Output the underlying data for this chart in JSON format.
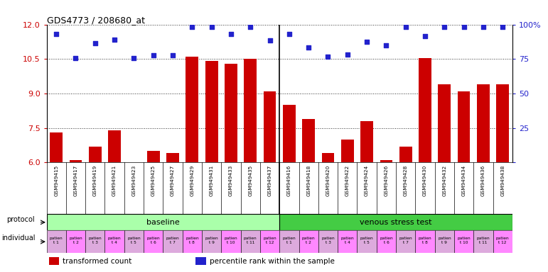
{
  "title": "GDS4773 / 208680_at",
  "gsm_labels": [
    "GSM949415",
    "GSM949417",
    "GSM949419",
    "GSM949421",
    "GSM949423",
    "GSM949425",
    "GSM949427",
    "GSM949429",
    "GSM949431",
    "GSM949433",
    "GSM949435",
    "GSM949437",
    "GSM949416",
    "GSM949418",
    "GSM949420",
    "GSM949422",
    "GSM949424",
    "GSM949426",
    "GSM949428",
    "GSM949430",
    "GSM949432",
    "GSM949434",
    "GSM949436",
    "GSM949438"
  ],
  "bar_values": [
    7.3,
    6.1,
    6.7,
    7.4,
    6.0,
    6.5,
    6.4,
    10.6,
    10.4,
    10.3,
    10.5,
    9.1,
    8.5,
    7.9,
    6.4,
    7.0,
    7.8,
    6.1,
    6.7,
    10.55,
    9.4,
    9.1,
    9.4,
    9.4
  ],
  "dot_values": [
    11.6,
    10.55,
    11.2,
    11.35,
    10.55,
    10.65,
    10.65,
    11.9,
    11.9,
    11.6,
    11.9,
    11.3,
    11.6,
    11.0,
    10.6,
    10.7,
    11.25,
    11.1,
    11.9,
    11.5,
    11.9,
    11.9,
    11.9,
    11.9
  ],
  "ylim_left": [
    6,
    12
  ],
  "yticks_left": [
    6,
    7.5,
    9,
    10.5,
    12
  ],
  "yticks_right": [
    0,
    25,
    50,
    75,
    100
  ],
  "bar_color": "#cc0000",
  "dot_color": "#2222cc",
  "protocol_baseline_count": 12,
  "protocol_stress_count": 12,
  "protocol_baseline_color": "#aaffaa",
  "protocol_stress_color": "#44cc44",
  "individual_color_even": "#ddaadd",
  "individual_color_odd": "#ff88ff",
  "bg_color": "#f0f0f0",
  "legend_bar_label": "transformed count",
  "legend_dot_label": "percentile rank within the sample"
}
